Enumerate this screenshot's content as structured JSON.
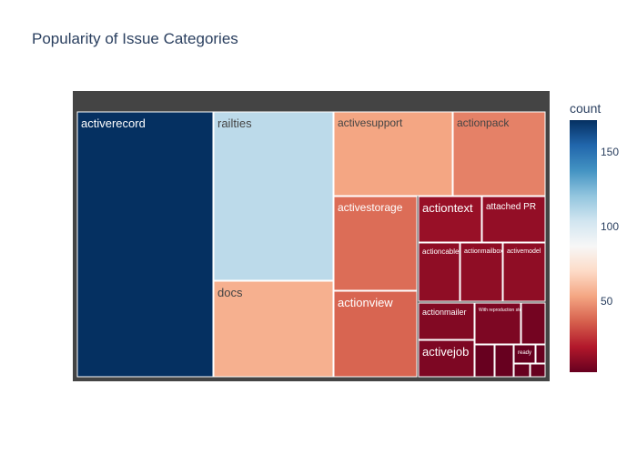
{
  "chart_data": {
    "type": "treemap",
    "title": "Popularity of Issue Categories",
    "colorbar": {
      "title": "count",
      "ticks": [
        "50",
        "100",
        "150"
      ],
      "tick_values": [
        50,
        100,
        150
      ],
      "range": [
        3,
        172
      ]
    },
    "colorscale": "RdBu",
    "items": [
      {
        "label": "activerecord",
        "value": 172
      },
      {
        "label": "railties",
        "value": 110
      },
      {
        "label": "docs",
        "value": 57
      },
      {
        "label": "activesupport",
        "value": 54
      },
      {
        "label": "actionpack",
        "value": 45
      },
      {
        "label": "activestorage",
        "value": 40
      },
      {
        "label": "actionview",
        "value": 38
      },
      {
        "label": "actiontext",
        "value": 14
      },
      {
        "label": "attached PR",
        "value": 13
      },
      {
        "label": "actioncable",
        "value": 12
      },
      {
        "label": "actionmailbox",
        "value": 12
      },
      {
        "label": "activemodel",
        "value": 12
      },
      {
        "label": "actionmailer",
        "value": 9
      },
      {
        "label": "With reproduction steps",
        "value": 8
      },
      {
        "label": "",
        "value": 6
      },
      {
        "label": "activejob",
        "value": 8
      },
      {
        "label": "",
        "value": 3
      },
      {
        "label": "",
        "value": 3
      },
      {
        "label": "ready",
        "value": 3
      },
      {
        "label": "",
        "value": 3
      },
      {
        "label": "",
        "value": 3
      },
      {
        "label": "",
        "value": 3
      }
    ]
  }
}
